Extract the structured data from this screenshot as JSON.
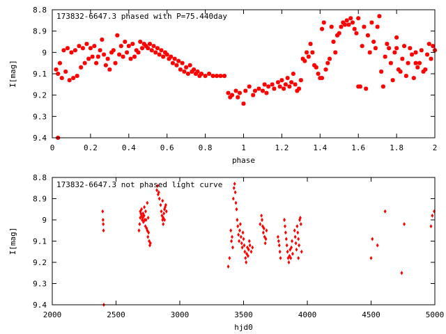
{
  "chart_data": [
    {
      "type": "scatter",
      "title": "173832-6647.3 phased with P=75.440day",
      "xlabel": "phase",
      "ylabel": "I[mag]",
      "xlim": [
        0,
        2
      ],
      "ylim": [
        9.4,
        8.8
      ],
      "y_inverted": true,
      "grid": false,
      "color": "#ff0000",
      "marker": "star",
      "x_ticks": [
        "0",
        "0.2",
        "0.4",
        "0.6",
        "0.8",
        "1",
        "1.2",
        "1.4",
        "1.6",
        "1.8",
        "2"
      ],
      "x_tick_values": [
        0,
        0.2,
        0.4,
        0.6,
        0.8,
        1,
        1.2,
        1.4,
        1.6,
        1.8,
        2
      ],
      "y_ticks": [
        "8.8",
        "8.9",
        "9",
        "9.1",
        "9.2",
        "9.3",
        "9.4"
      ],
      "y_tick_values": [
        8.8,
        8.9,
        9.0,
        9.1,
        9.2,
        9.3,
        9.4
      ],
      "points": [
        [
          0.02,
          9.08
        ],
        [
          0.03,
          9.1
        ],
        [
          0.04,
          9.05
        ],
        [
          0.05,
          9.12
        ],
        [
          0.06,
          8.99
        ],
        [
          0.07,
          9.09
        ],
        [
          0.08,
          8.98
        ],
        [
          0.09,
          9.13
        ],
        [
          0.1,
          9.0
        ],
        [
          0.11,
          9.12
        ],
        [
          0.12,
          8.99
        ],
        [
          0.13,
          9.11
        ],
        [
          0.14,
          8.97
        ],
        [
          0.15,
          9.07
        ],
        [
          0.16,
          8.98
        ],
        [
          0.17,
          9.05
        ],
        [
          0.18,
          8.96
        ],
        [
          0.19,
          9.03
        ],
        [
          0.2,
          8.98
        ],
        [
          0.21,
          9.02
        ],
        [
          0.22,
          8.97
        ],
        [
          0.23,
          9.05
        ],
        [
          0.24,
          9.02
        ],
        [
          0.25,
          8.99
        ],
        [
          0.26,
          8.94
        ],
        [
          0.27,
          9.01
        ],
        [
          0.28,
          9.06
        ],
        [
          0.29,
          9.03
        ],
        [
          0.3,
          9.08
        ],
        [
          0.31,
          9.0
        ],
        [
          0.32,
          8.99
        ],
        [
          0.33,
          9.05
        ],
        [
          0.34,
          8.92
        ],
        [
          0.35,
          9.01
        ],
        [
          0.36,
          8.97
        ],
        [
          0.37,
          9.02
        ],
        [
          0.38,
          8.95
        ],
        [
          0.39,
          9.0
        ],
        [
          0.4,
          8.97
        ],
        [
          0.41,
          9.03
        ],
        [
          0.42,
          8.96
        ],
        [
          0.43,
          9.02
        ],
        [
          0.44,
          8.99
        ],
        [
          0.45,
          9.0
        ],
        [
          0.46,
          8.95
        ],
        [
          0.47,
          8.98
        ],
        [
          0.48,
          8.96
        ],
        [
          0.49,
          8.97
        ],
        [
          0.5,
          8.98
        ],
        [
          0.51,
          8.96
        ],
        [
          0.52,
          8.99
        ],
        [
          0.53,
          8.97
        ],
        [
          0.54,
          9.0
        ],
        [
          0.55,
          8.98
        ],
        [
          0.56,
          9.01
        ],
        [
          0.57,
          8.99
        ],
        [
          0.58,
          9.02
        ],
        [
          0.59,
          9.0
        ],
        [
          0.6,
          9.01
        ],
        [
          0.61,
          9.03
        ],
        [
          0.62,
          9.02
        ],
        [
          0.63,
          9.05
        ],
        [
          0.64,
          9.03
        ],
        [
          0.65,
          9.06
        ],
        [
          0.66,
          9.04
        ],
        [
          0.67,
          9.08
        ],
        [
          0.68,
          9.05
        ],
        [
          0.69,
          9.09
        ],
        [
          0.7,
          9.07
        ],
        [
          0.71,
          9.1
        ],
        [
          0.72,
          9.06
        ],
        [
          0.73,
          9.09
        ],
        [
          0.74,
          9.08
        ],
        [
          0.75,
          9.1
        ],
        [
          0.76,
          9.09
        ],
        [
          0.77,
          9.11
        ],
        [
          0.78,
          9.1
        ],
        [
          0.8,
          9.11
        ],
        [
          0.82,
          9.1
        ],
        [
          0.84,
          9.11
        ],
        [
          0.86,
          9.11
        ],
        [
          0.88,
          9.11
        ],
        [
          0.9,
          9.11
        ],
        [
          0.92,
          9.19
        ],
        [
          0.93,
          9.21
        ],
        [
          0.94,
          9.2
        ],
        [
          0.96,
          9.18
        ],
        [
          0.97,
          9.21
        ],
        [
          0.98,
          9.19
        ],
        [
          1.0,
          9.24
        ],
        [
          1.01,
          9.18
        ],
        [
          1.03,
          9.16
        ],
        [
          1.05,
          9.2
        ],
        [
          1.06,
          9.18
        ],
        [
          1.08,
          9.17
        ],
        [
          1.1,
          9.18
        ],
        [
          1.11,
          9.15
        ],
        [
          1.12,
          9.19
        ],
        [
          1.13,
          9.16
        ],
        [
          1.15,
          9.15
        ],
        [
          1.16,
          9.17
        ],
        [
          1.18,
          9.14
        ],
        [
          1.19,
          9.16
        ],
        [
          1.2,
          9.13
        ],
        [
          1.21,
          9.17
        ],
        [
          1.22,
          9.15
        ],
        [
          1.23,
          9.12
        ],
        [
          1.24,
          9.16
        ],
        [
          1.25,
          9.14
        ],
        [
          1.26,
          9.1
        ],
        [
          1.27,
          9.15
        ],
        [
          1.28,
          9.18
        ],
        [
          1.29,
          9.17
        ],
        [
          1.3,
          9.13
        ],
        [
          1.31,
          9.03
        ],
        [
          1.32,
          9.04
        ],
        [
          1.33,
          9.0
        ],
        [
          1.34,
          9.02
        ],
        [
          1.35,
          8.96
        ],
        [
          1.36,
          9.0
        ],
        [
          1.37,
          9.06
        ],
        [
          1.38,
          9.07
        ],
        [
          1.39,
          9.1
        ],
        [
          1.4,
          9.12
        ],
        [
          1.41,
          8.89
        ],
        [
          1.42,
          8.86
        ],
        [
          1.43,
          9.08
        ],
        [
          1.44,
          9.05
        ],
        [
          1.45,
          9.03
        ],
        [
          1.46,
          8.88
        ],
        [
          1.47,
          8.95
        ],
        [
          1.48,
          9.0
        ],
        [
          1.49,
          8.92
        ],
        [
          1.5,
          8.91
        ],
        [
          1.51,
          8.88
        ],
        [
          1.52,
          8.86
        ],
        [
          1.53,
          8.87
        ],
        [
          1.54,
          8.85
        ],
        [
          1.55,
          8.87
        ],
        [
          1.56,
          8.84
        ],
        [
          1.57,
          8.86
        ],
        [
          1.58,
          8.89
        ],
        [
          1.59,
          8.91
        ],
        [
          1.6,
          8.84
        ],
        [
          1.61,
          9.16
        ],
        [
          1.62,
          8.97
        ],
        [
          1.63,
          8.88
        ],
        [
          1.64,
          9.17
        ],
        [
          1.65,
          8.92
        ],
        [
          1.66,
          9.0
        ],
        [
          1.67,
          8.86
        ],
        [
          1.68,
          8.95
        ],
        [
          1.69,
          8.98
        ],
        [
          1.7,
          8.88
        ],
        [
          1.71,
          8.83
        ],
        [
          1.72,
          9.09
        ],
        [
          1.73,
          9.16
        ],
        [
          1.74,
          9.02
        ],
        [
          1.75,
          8.96
        ],
        [
          1.76,
          8.98
        ],
        [
          1.77,
          9.05
        ],
        [
          1.78,
          9.13
        ],
        [
          1.79,
          9.0
        ],
        [
          1.8,
          8.98
        ],
        [
          1.81,
          9.08
        ],
        [
          1.82,
          9.09
        ],
        [
          1.83,
          9.03
        ],
        [
          1.84,
          8.97
        ],
        [
          1.85,
          9.11
        ],
        [
          1.86,
          9.05
        ],
        [
          1.87,
          8.98
        ],
        [
          1.88,
          9.01
        ],
        [
          1.89,
          9.12
        ],
        [
          1.9,
          9.0
        ],
        [
          1.91,
          9.07
        ],
        [
          1.92,
          9.05
        ],
        [
          1.93,
          8.99
        ],
        [
          1.94,
          9.09
        ],
        [
          1.95,
          9.08
        ],
        [
          1.96,
          9.01
        ],
        [
          1.97,
          8.96
        ],
        [
          1.98,
          9.03
        ],
        [
          1.99,
          8.97
        ],
        [
          2.0,
          8.99
        ],
        [
          0.03,
          9.4
        ],
        [
          1.41,
          9.12
        ],
        [
          1.6,
          9.16
        ],
        [
          1.8,
          8.93
        ],
        [
          1.9,
          9.05
        ]
      ]
    },
    {
      "type": "scatter",
      "title": "173832-6647.3 not phased light curve",
      "xlabel": "hjd0",
      "ylabel": "I[mag]",
      "xlim": [
        2000,
        5000
      ],
      "ylim": [
        9.4,
        8.8
      ],
      "y_inverted": true,
      "grid": false,
      "color": "#ff0000",
      "marker": "diamond",
      "x_ticks": [
        "2000",
        "2500",
        "3000",
        "3500",
        "4000",
        "4500",
        "5000"
      ],
      "x_tick_values": [
        2000,
        2500,
        3000,
        3500,
        4000,
        4500,
        5000
      ],
      "y_ticks": [
        "8.8",
        "8.9",
        "9",
        "9.1",
        "9.2",
        "9.3",
        "9.4"
      ],
      "y_tick_values": [
        8.8,
        8.9,
        9.0,
        9.1,
        9.2,
        9.3,
        9.4
      ],
      "points": [
        [
          2395,
          8.96
        ],
        [
          2398,
          9.0
        ],
        [
          2400,
          9.02
        ],
        [
          2402,
          9.05
        ],
        [
          2404,
          9.4
        ],
        [
          2680,
          9.05
        ],
        [
          2685,
          9.02
        ],
        [
          2690,
          8.99
        ],
        [
          2695,
          8.97
        ],
        [
          2700,
          8.98
        ],
        [
          2705,
          9.0
        ],
        [
          2710,
          8.99
        ],
        [
          2715,
          9.01
        ],
        [
          2720,
          8.98
        ],
        [
          2725,
          9.0
        ],
        [
          2730,
          9.03
        ],
        [
          2735,
          9.0
        ],
        [
          2740,
          9.04
        ],
        [
          2745,
          9.05
        ],
        [
          2750,
          9.08
        ],
        [
          2755,
          9.06
        ],
        [
          2760,
          9.1
        ],
        [
          2765,
          9.12
        ],
        [
          2770,
          9.11
        ],
        [
          2690,
          8.96
        ],
        [
          2700,
          8.95
        ],
        [
          2712,
          8.97
        ],
        [
          2722,
          8.94
        ],
        [
          2732,
          8.96
        ],
        [
          2745,
          8.92
        ],
        [
          2752,
          8.99
        ],
        [
          2820,
          8.86
        ],
        [
          2825,
          8.84
        ],
        [
          2830,
          8.88
        ],
        [
          2835,
          8.87
        ],
        [
          2840,
          8.9
        ],
        [
          2850,
          8.93
        ],
        [
          2855,
          8.96
        ],
        [
          2860,
          8.98
        ],
        [
          2865,
          9.0
        ],
        [
          2870,
          8.99
        ],
        [
          2875,
          8.97
        ],
        [
          2880,
          8.95
        ],
        [
          2885,
          8.94
        ],
        [
          2890,
          8.93
        ],
        [
          2895,
          8.96
        ],
        [
          2870,
          9.02
        ],
        [
          2880,
          9.0
        ],
        [
          2865,
          8.91
        ],
        [
          3380,
          9.22
        ],
        [
          3390,
          9.18
        ],
        [
          3400,
          9.05
        ],
        [
          3405,
          9.1
        ],
        [
          3410,
          9.08
        ],
        [
          3415,
          9.13
        ],
        [
          3420,
          8.9
        ],
        [
          3425,
          8.85
        ],
        [
          3430,
          8.83
        ],
        [
          3435,
          8.87
        ],
        [
          3440,
          8.92
        ],
        [
          3445,
          8.95
        ],
        [
          3450,
          9.0
        ],
        [
          3455,
          9.03
        ],
        [
          3460,
          9.07
        ],
        [
          3465,
          9.1
        ],
        [
          3470,
          9.05
        ],
        [
          3475,
          9.02
        ],
        [
          3480,
          9.08
        ],
        [
          3485,
          9.11
        ],
        [
          3490,
          9.13
        ],
        [
          3495,
          9.06
        ],
        [
          3500,
          9.09
        ],
        [
          3505,
          9.12
        ],
        [
          3510,
          9.15
        ],
        [
          3515,
          9.18
        ],
        [
          3520,
          9.2
        ],
        [
          3525,
          9.16
        ],
        [
          3530,
          9.13
        ],
        [
          3535,
          9.17
        ],
        [
          3540,
          9.14
        ],
        [
          3545,
          9.1
        ],
        [
          3550,
          9.12
        ],
        [
          3560,
          9.15
        ],
        [
          3570,
          9.13
        ],
        [
          3630,
          9.02
        ],
        [
          3640,
          8.98
        ],
        [
          3645,
          9.0
        ],
        [
          3650,
          9.03
        ],
        [
          3655,
          9.06
        ],
        [
          3660,
          9.04
        ],
        [
          3665,
          9.08
        ],
        [
          3670,
          9.11
        ],
        [
          3675,
          9.09
        ],
        [
          3680,
          9.05
        ],
        [
          3770,
          9.08
        ],
        [
          3775,
          9.1
        ],
        [
          3780,
          9.12
        ],
        [
          3785,
          9.15
        ],
        [
          3790,
          9.18
        ],
        [
          3820,
          9.0
        ],
        [
          3825,
          9.03
        ],
        [
          3830,
          9.06
        ],
        [
          3835,
          9.09
        ],
        [
          3840,
          9.12
        ],
        [
          3845,
          9.15
        ],
        [
          3850,
          9.18
        ],
        [
          3855,
          9.2
        ],
        [
          3860,
          9.17
        ],
        [
          3865,
          9.14
        ],
        [
          3870,
          9.18
        ],
        [
          3875,
          9.13
        ],
        [
          3880,
          9.1
        ],
        [
          3885,
          9.16
        ],
        [
          3900,
          9.05
        ],
        [
          3905,
          9.08
        ],
        [
          3910,
          9.11
        ],
        [
          3915,
          9.14
        ],
        [
          3920,
          9.03
        ],
        [
          3925,
          9.06
        ],
        [
          3930,
          9.09
        ],
        [
          3935,
          9.12
        ],
        [
          3940,
          9.0
        ],
        [
          3945,
          8.99
        ],
        [
          3950,
          9.02
        ],
        [
          3955,
          9.15
        ],
        [
          3930,
          9.18
        ],
        [
          4500,
          9.18
        ],
        [
          4510,
          9.09
        ],
        [
          4550,
          9.12
        ],
        [
          4610,
          8.96
        ],
        [
          4740,
          9.25
        ],
        [
          4760,
          9.02
        ],
        [
          4970,
          9.03
        ],
        [
          4980,
          8.98
        ],
        [
          4995,
          8.96
        ]
      ]
    }
  ]
}
